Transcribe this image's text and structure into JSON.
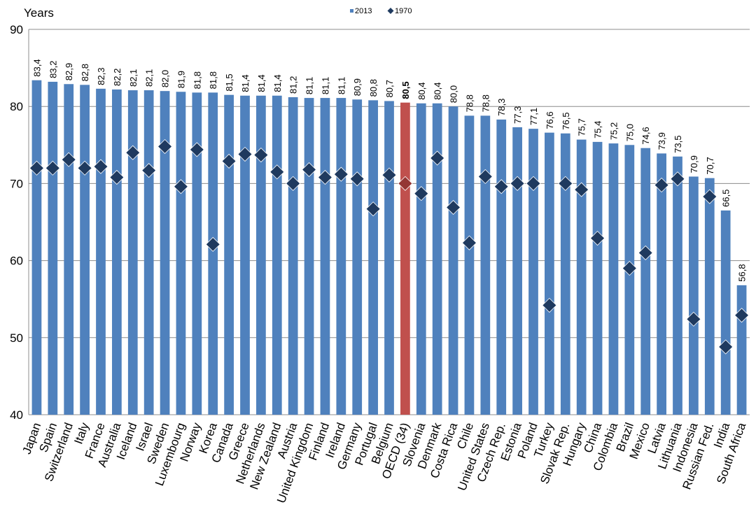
{
  "chart_data": {
    "type": "bar",
    "ylabel": "Years",
    "ylim": [
      40,
      90
    ],
    "yticks": [
      40,
      50,
      60,
      70,
      80,
      90
    ],
    "grid": true,
    "legend_position": "top-center",
    "categories": [
      "Japan",
      "Spain",
      "Switzerland",
      "Italy",
      "France",
      "Australia",
      "Iceland",
      "Israel",
      "Sweden",
      "Luxembourg",
      "Norway",
      "Korea",
      "Canada",
      "Greece",
      "Netherlands",
      "New Zealand",
      "Austria",
      "United Kingdom",
      "Finland",
      "Ireland",
      "Germany",
      "Portugal",
      "Belgium",
      "OECD (34)",
      "Slovenia",
      "Denmark",
      "Costa Rica",
      "Chile",
      "United States",
      "Czech Rep.",
      "Estonia",
      "Poland",
      "Turkey",
      "Slovak Rep.",
      "Hungary",
      "China",
      "Colombia",
      "Brazil",
      "Mexico",
      "Latvia",
      "Lithuania",
      "Indonesia",
      "Russian Fed.",
      "India",
      "South Africa"
    ],
    "series": [
      {
        "name": "2013",
        "type": "bar",
        "color": "#4F81BD",
        "highlight_color": "#C0504D",
        "highlight_category": "OECD (34)",
        "values": [
          83.4,
          83.2,
          82.9,
          82.8,
          82.3,
          82.2,
          82.1,
          82.1,
          82.0,
          81.9,
          81.8,
          81.8,
          81.5,
          81.4,
          81.4,
          81.4,
          81.2,
          81.1,
          81.1,
          81.1,
          80.9,
          80.8,
          80.7,
          80.5,
          80.4,
          80.4,
          80.0,
          78.8,
          78.8,
          78.3,
          77.3,
          77.1,
          76.6,
          76.5,
          75.7,
          75.4,
          75.2,
          75.0,
          74.6,
          73.9,
          73.5,
          70.9,
          70.7,
          66.5,
          56.8
        ],
        "labels": [
          "83,4",
          "83,2",
          "82,9",
          "82,8",
          "82,3",
          "82,2",
          "82,1",
          "82,1",
          "82,0",
          "81,9",
          "81,8",
          "81,8",
          "81,5",
          "81,4",
          "81,4",
          "81,4",
          "81,2",
          "81,1",
          "81,1",
          "81,1",
          "80,9",
          "80,8",
          "80,7",
          "80,5",
          "80,4",
          "80,4",
          "80,0",
          "78,8",
          "78,8",
          "78,3",
          "77,3",
          "77,1",
          "76,6",
          "76,5",
          "75,7",
          "75,4",
          "75,2",
          "75,0",
          "74,6",
          "73,9",
          "73,5",
          "70,9",
          "70,7",
          "66,5",
          "56,8"
        ]
      },
      {
        "name": "1970",
        "type": "scatter",
        "marker": "diamond",
        "color": "#1F3A5F",
        "highlight_color": "#943634",
        "values": [
          72.0,
          72.0,
          73.1,
          72.0,
          72.2,
          70.8,
          74.0,
          71.7,
          74.8,
          69.6,
          74.4,
          62.1,
          72.9,
          73.8,
          73.7,
          71.5,
          70.0,
          71.8,
          70.8,
          71.2,
          70.6,
          66.7,
          71.1,
          70.0,
          68.7,
          73.3,
          66.9,
          62.3,
          70.9,
          69.6,
          70.0,
          70.0,
          54.2,
          70.0,
          69.2,
          62.9,
          null,
          59.0,
          61.0,
          69.8,
          70.6,
          52.4,
          68.3,
          48.8,
          52.9
        ]
      }
    ]
  }
}
